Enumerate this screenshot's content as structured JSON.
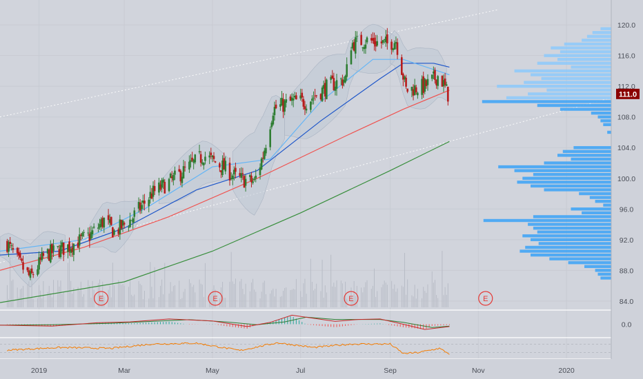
{
  "colors": {
    "background": "#d1d4dc",
    "axis_panel": "#cfd2da",
    "up_candle": "#2e7d32",
    "down_candle": "#b71c1c",
    "volume_profile": "#42a5f5",
    "volume_profile_light": "#90caf9",
    "price_tag": "#8b0000",
    "ma_red": "#ef5350",
    "ma_blue": "#1e56c9",
    "ma_lightblue": "#64b5f6",
    "ma_green": "#388e3c",
    "macd_line": "#c62828",
    "signal_line": "#2e7d32",
    "rsi_line": "#f57c00",
    "earnings_marker": "#e53935",
    "channel_line": "#ffffff"
  },
  "price_tag": "111.0",
  "earnings_label": "E",
  "chart_data": {
    "type": "candlestick",
    "x_axis": {
      "type": "date",
      "tick_labels": [
        "2019",
        "Mar",
        "May",
        "Jul",
        "Sep",
        "Nov",
        "2020"
      ],
      "tick_dates": [
        "2019-01-01",
        "2019-03-01",
        "2019-05-01",
        "2019-07-01",
        "2019-09-01",
        "2019-11-01",
        "2020-01-01"
      ],
      "range": [
        "2018-12-05",
        "2020-02-01"
      ]
    },
    "y_axis": {
      "range": [
        83,
        121
      ],
      "tick_labels": [
        "84.0",
        "88.0",
        "92.0",
        "96.0",
        "100.0",
        "104.0",
        "108.0",
        "112.0",
        "116.0",
        "120.0"
      ],
      "tick_values": [
        84,
        88,
        92,
        96,
        100,
        104,
        108,
        112,
        116,
        120
      ]
    },
    "last_price": 111.0,
    "price_keypoints": [
      [
        "2018-12-10",
        91.5
      ],
      [
        "2018-12-18",
        89.0
      ],
      [
        "2018-12-26",
        87.0
      ],
      [
        "2019-01-05",
        90.0
      ],
      [
        "2019-01-20",
        91.0
      ],
      [
        "2019-02-05",
        92.5
      ],
      [
        "2019-02-15",
        94.5
      ],
      [
        "2019-02-22",
        93.0
      ],
      [
        "2019-03-05",
        94.5
      ],
      [
        "2019-03-20",
        98.0
      ],
      [
        "2019-04-05",
        100.0
      ],
      [
        "2019-04-25",
        103.0
      ],
      [
        "2019-05-08",
        101.5
      ],
      [
        "2019-05-18",
        100.0
      ],
      [
        "2019-05-30",
        99.5
      ],
      [
        "2019-06-05",
        103.0
      ],
      [
        "2019-06-12",
        109.0
      ],
      [
        "2019-06-25",
        110.0
      ],
      [
        "2019-07-05",
        110.0
      ],
      [
        "2019-07-20",
        112.0
      ],
      [
        "2019-08-01",
        113.0
      ],
      [
        "2019-08-05",
        117.5
      ],
      [
        "2019-08-15",
        118.0
      ],
      [
        "2019-08-30",
        117.5
      ],
      [
        "2019-09-05",
        118.0
      ],
      [
        "2019-09-12",
        111.5
      ],
      [
        "2019-09-25",
        112.0
      ],
      [
        "2019-10-05",
        113.5
      ],
      [
        "2019-10-12",
        110.5
      ]
    ],
    "moving_averages": [
      {
        "color": "ma_red",
        "points": [
          [
            "2018-12-05",
            88.0
          ],
          [
            "2019-02-01",
            91.0
          ],
          [
            "2019-04-01",
            95.0
          ],
          [
            "2019-06-01",
            100.0
          ],
          [
            "2019-08-01",
            105.5
          ],
          [
            "2019-09-10",
            109.0
          ],
          [
            "2019-10-12",
            111.5
          ]
        ]
      },
      {
        "color": "ma_blue",
        "points": [
          [
            "2018-12-05",
            90.0
          ],
          [
            "2019-01-15",
            90.5
          ],
          [
            "2019-03-01",
            93.5
          ],
          [
            "2019-04-20",
            98.5
          ],
          [
            "2019-06-01",
            101.0
          ],
          [
            "2019-07-15",
            107.5
          ],
          [
            "2019-08-25",
            113.0
          ],
          [
            "2019-09-10",
            115.0
          ],
          [
            "2019-10-01",
            115.0
          ],
          [
            "2019-10-12",
            114.5
          ]
        ]
      },
      {
        "color": "ma_lightblue",
        "points": [
          [
            "2018-12-05",
            90.5
          ],
          [
            "2019-02-01",
            92.0
          ],
          [
            "2019-03-15",
            96.0
          ],
          [
            "2019-05-01",
            101.5
          ],
          [
            "2019-06-10",
            102.5
          ],
          [
            "2019-07-15",
            110.0
          ],
          [
            "2019-08-20",
            115.5
          ],
          [
            "2019-09-10",
            115.5
          ],
          [
            "2019-10-12",
            113.5
          ]
        ]
      },
      {
        "color": "ma_green",
        "points": [
          [
            "2018-12-05",
            83.8
          ],
          [
            "2019-03-01",
            86.5
          ],
          [
            "2019-05-01",
            90.5
          ],
          [
            "2019-07-01",
            95.5
          ],
          [
            "2019-09-01",
            101.0
          ],
          [
            "2019-10-12",
            104.8
          ]
        ]
      }
    ],
    "channel_lines": [
      {
        "points": [
          [
            "2018-12-05",
            108.0
          ],
          [
            "2019-11-15",
            122.0
          ]
        ]
      },
      {
        "points": [
          [
            "2018-12-05",
            89.0
          ],
          [
            "2020-02-01",
            110.5
          ]
        ]
      }
    ],
    "earnings_dates": [
      "2019-02-13",
      "2019-05-03",
      "2019-08-05",
      "2019-11-06"
    ],
    "volume_profile": [
      [
        119.5,
        0.08
      ],
      [
        119.0,
        0.14
      ],
      [
        118.5,
        0.18
      ],
      [
        118.0,
        0.22
      ],
      [
        117.5,
        0.35
      ],
      [
        117.0,
        0.45
      ],
      [
        116.5,
        0.38
      ],
      [
        116.0,
        0.5
      ],
      [
        115.5,
        0.4
      ],
      [
        115.0,
        0.55
      ],
      [
        114.5,
        0.3
      ],
      [
        114.0,
        0.72
      ],
      [
        113.5,
        0.6
      ],
      [
        113.0,
        0.52
      ],
      [
        112.5,
        0.65
      ],
      [
        112.0,
        0.85
      ],
      [
        111.5,
        0.48
      ],
      [
        111.0,
        0.62
      ],
      [
        110.5,
        0.78
      ],
      [
        110.0,
        0.96
      ],
      [
        109.5,
        0.55
      ],
      [
        109.0,
        0.38
      ],
      [
        108.5,
        0.15
      ],
      [
        108.0,
        0.1
      ],
      [
        107.5,
        0.08
      ],
      [
        107.0,
        0.06
      ],
      [
        106.0,
        0.03
      ],
      [
        104.0,
        0.28
      ],
      [
        103.5,
        0.36
      ],
      [
        103.0,
        0.4
      ],
      [
        102.5,
        0.3
      ],
      [
        102.0,
        0.5
      ],
      [
        101.5,
        0.84
      ],
      [
        101.0,
        0.72
      ],
      [
        100.5,
        0.58
      ],
      [
        100.0,
        0.66
      ],
      [
        99.5,
        0.7
      ],
      [
        99.0,
        0.6
      ],
      [
        98.5,
        0.5
      ],
      [
        98.0,
        0.24
      ],
      [
        97.5,
        0.16
      ],
      [
        97.0,
        0.12
      ],
      [
        96.5,
        0.06
      ],
      [
        96.0,
        0.3
      ],
      [
        95.5,
        0.22
      ],
      [
        95.0,
        0.58
      ],
      [
        94.5,
        0.95
      ],
      [
        94.0,
        0.62
      ],
      [
        93.5,
        0.58
      ],
      [
        93.0,
        0.55
      ],
      [
        92.5,
        0.66
      ],
      [
        92.0,
        0.6
      ],
      [
        91.5,
        0.54
      ],
      [
        91.0,
        0.64
      ],
      [
        90.5,
        0.68
      ],
      [
        90.0,
        0.6
      ],
      [
        89.5,
        0.46
      ],
      [
        89.0,
        0.32
      ],
      [
        88.5,
        0.2
      ],
      [
        88.0,
        0.12
      ],
      [
        87.5,
        0.1
      ],
      [
        87.0,
        0.08
      ]
    ],
    "macd_axis": {
      "tick_labels": [
        "0.0"
      ],
      "range": [
        -1.2,
        1.2
      ]
    },
    "macd": [
      [
        "2018-12-05",
        -0.1
      ],
      [
        "2019-01-10",
        -0.2
      ],
      [
        "2019-02-10",
        0.15
      ],
      [
        "2019-03-05",
        0.25
      ],
      [
        "2019-04-01",
        0.55
      ],
      [
        "2019-05-01",
        0.35
      ],
      [
        "2019-05-25",
        -0.25
      ],
      [
        "2019-06-10",
        0.2
      ],
      [
        "2019-06-25",
        0.95
      ],
      [
        "2019-07-25",
        0.3
      ],
      [
        "2019-08-10",
        0.5
      ],
      [
        "2019-08-25",
        0.55
      ],
      [
        "2019-09-10",
        0.0
      ],
      [
        "2019-09-25",
        -0.55
      ],
      [
        "2019-10-12",
        -0.25
      ]
    ],
    "macd_signal": [
      [
        "2018-12-05",
        -0.1
      ],
      [
        "2019-01-10",
        -0.05
      ],
      [
        "2019-02-20",
        0.1
      ],
      [
        "2019-03-20",
        0.3
      ],
      [
        "2019-04-15",
        0.48
      ],
      [
        "2019-05-10",
        0.25
      ],
      [
        "2019-06-01",
        -0.05
      ],
      [
        "2019-06-20",
        0.25
      ],
      [
        "2019-07-05",
        0.75
      ],
      [
        "2019-07-25",
        0.5
      ],
      [
        "2019-08-25",
        0.5
      ],
      [
        "2019-09-10",
        0.2
      ],
      [
        "2019-09-30",
        -0.35
      ],
      [
        "2019-10-12",
        -0.2
      ]
    ],
    "rsi": [
      [
        "2018-12-05",
        45
      ],
      [
        "2019-01-15",
        52
      ],
      [
        "2019-02-20",
        50
      ],
      [
        "2019-03-20",
        60
      ],
      [
        "2019-04-20",
        62
      ],
      [
        "2019-05-20",
        45
      ],
      [
        "2019-06-15",
        63
      ],
      [
        "2019-07-10",
        52
      ],
      [
        "2019-08-05",
        60
      ],
      [
        "2019-09-01",
        60
      ],
      [
        "2019-09-10",
        38
      ],
      [
        "2019-09-20",
        40
      ],
      [
        "2019-10-05",
        50
      ],
      [
        "2019-10-12",
        37
      ]
    ]
  }
}
